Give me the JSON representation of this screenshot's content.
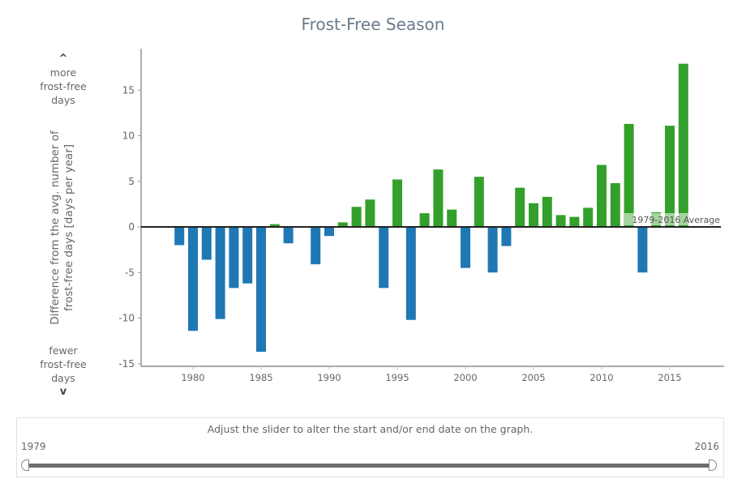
{
  "title": "Frost-Free Season",
  "side_notes": {
    "top": {
      "arrow": "^",
      "lines": [
        "more",
        "frost-free",
        "days"
      ]
    },
    "bottom": {
      "arrow": "v",
      "lines": [
        "fewer",
        "frost-free",
        "days"
      ]
    }
  },
  "slider": {
    "caption": "Adjust the slider to alter the start and/or end date on the graph.",
    "start_value": "1979",
    "end_value": "2016",
    "min": 1979,
    "max": 2016
  },
  "colors": {
    "positive": "#33a02c",
    "negative": "#1f78b4",
    "title": "#6b7b8c",
    "axis": "#555555"
  },
  "chart_data": {
    "type": "bar",
    "title": "Frost-Free Season",
    "xlabel": "",
    "ylabel_lines": [
      "Difference from the avg. number of",
      "frost-free days [days per year]"
    ],
    "ylim": [
      -15.5,
      19
    ],
    "xlim": [
      1976.5,
      2020.5
    ],
    "yticks": [
      -15,
      -10,
      -5,
      0,
      5,
      10,
      15
    ],
    "xticks": [
      1980,
      1985,
      1990,
      1995,
      2000,
      2005,
      2010,
      2015
    ],
    "grid": false,
    "reference_line": {
      "value": 0,
      "label": "1979-2016 Average"
    },
    "x": [
      1979,
      1980,
      1981,
      1982,
      1983,
      1984,
      1985,
      1986,
      1987,
      1988,
      1989,
      1990,
      1991,
      1992,
      1993,
      1994,
      1995,
      1996,
      1997,
      1998,
      1999,
      2000,
      2001,
      2002,
      2003,
      2004,
      2005,
      2006,
      2007,
      2008,
      2009,
      2010,
      2011,
      2012,
      2013,
      2014,
      2015,
      2016
    ],
    "values": [
      -2.0,
      -11.4,
      -3.6,
      -10.1,
      -6.7,
      -6.2,
      -13.7,
      0.3,
      -1.8,
      0.0,
      -4.1,
      -1.0,
      0.5,
      2.2,
      3.0,
      -6.7,
      5.2,
      -10.2,
      1.5,
      6.3,
      1.9,
      -4.5,
      5.5,
      -5.0,
      -2.1,
      4.3,
      2.6,
      3.3,
      1.3,
      1.1,
      2.1,
      6.8,
      4.8,
      11.3,
      -5.0,
      1.6,
      11.1,
      17.9
    ]
  }
}
